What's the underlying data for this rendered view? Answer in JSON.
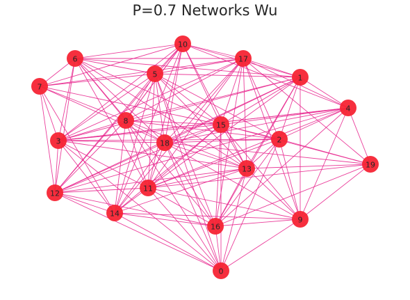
{
  "title": "P=0.7 Networks Wu",
  "colors": {
    "edge": "#e8288f",
    "node": "#f62434",
    "label": "#262626"
  },
  "chart_data": {
    "type": "network",
    "nodes": [
      {
        "id": "0",
        "label": "0"
      },
      {
        "id": "1",
        "label": "1"
      },
      {
        "id": "2",
        "label": "2"
      },
      {
        "id": "3",
        "label": "3"
      },
      {
        "id": "4",
        "label": "4"
      },
      {
        "id": "5",
        "label": "5"
      },
      {
        "id": "6",
        "label": "6"
      },
      {
        "id": "7",
        "label": "7"
      },
      {
        "id": "8",
        "label": "8"
      },
      {
        "id": "9",
        "label": "9"
      },
      {
        "id": "10",
        "label": "10"
      },
      {
        "id": "11",
        "label": "11"
      },
      {
        "id": "12",
        "label": "12"
      },
      {
        "id": "13",
        "label": "13"
      },
      {
        "id": "14",
        "label": "14"
      },
      {
        "id": "15",
        "label": "15"
      },
      {
        "id": "16",
        "label": "16"
      },
      {
        "id": "17",
        "label": "17"
      },
      {
        "id": "18",
        "label": "18"
      },
      {
        "id": "19",
        "label": "19"
      }
    ],
    "edges": [
      [
        "0",
        "11"
      ],
      [
        "0",
        "14"
      ],
      [
        "0",
        "16"
      ],
      [
        "0",
        "13"
      ],
      [
        "0",
        "9"
      ],
      [
        "0",
        "18"
      ],
      [
        "0",
        "3"
      ],
      [
        "0",
        "2"
      ],
      [
        "0",
        "15"
      ],
      [
        "0",
        "12"
      ],
      [
        "0",
        "8"
      ],
      [
        "0",
        "5"
      ],
      [
        "1",
        "17"
      ],
      [
        "1",
        "10"
      ],
      [
        "1",
        "15"
      ],
      [
        "1",
        "18"
      ],
      [
        "1",
        "2"
      ],
      [
        "1",
        "4"
      ],
      [
        "1",
        "13"
      ],
      [
        "1",
        "11"
      ],
      [
        "1",
        "16"
      ],
      [
        "1",
        "5"
      ],
      [
        "1",
        "3"
      ],
      [
        "1",
        "8"
      ],
      [
        "1",
        "6"
      ],
      [
        "1",
        "9"
      ],
      [
        "1",
        "12"
      ],
      [
        "2",
        "4"
      ],
      [
        "2",
        "19"
      ],
      [
        "2",
        "9"
      ],
      [
        "2",
        "13"
      ],
      [
        "2",
        "18"
      ],
      [
        "2",
        "15"
      ],
      [
        "2",
        "17"
      ],
      [
        "2",
        "11"
      ],
      [
        "2",
        "8"
      ],
      [
        "2",
        "3"
      ],
      [
        "2",
        "16"
      ],
      [
        "2",
        "5"
      ],
      [
        "3",
        "7"
      ],
      [
        "3",
        "6"
      ],
      [
        "3",
        "8"
      ],
      [
        "3",
        "18"
      ],
      [
        "3",
        "12"
      ],
      [
        "3",
        "11"
      ],
      [
        "3",
        "15"
      ],
      [
        "3",
        "13"
      ],
      [
        "3",
        "10"
      ],
      [
        "3",
        "5"
      ],
      [
        "3",
        "4"
      ],
      [
        "3",
        "17"
      ],
      [
        "3",
        "14"
      ],
      [
        "4",
        "17"
      ],
      [
        "4",
        "15"
      ],
      [
        "4",
        "19"
      ],
      [
        "4",
        "9"
      ],
      [
        "4",
        "18"
      ],
      [
        "4",
        "11"
      ],
      [
        "4",
        "16"
      ],
      [
        "4",
        "12"
      ],
      [
        "4",
        "10"
      ],
      [
        "4",
        "3"
      ],
      [
        "5",
        "10"
      ],
      [
        "5",
        "6"
      ],
      [
        "5",
        "7"
      ],
      [
        "5",
        "17"
      ],
      [
        "5",
        "18"
      ],
      [
        "5",
        "11"
      ],
      [
        "5",
        "14"
      ],
      [
        "5",
        "12"
      ],
      [
        "5",
        "15"
      ],
      [
        "5",
        "16"
      ],
      [
        "5",
        "13"
      ],
      [
        "5",
        "8"
      ],
      [
        "6",
        "10"
      ],
      [
        "6",
        "7"
      ],
      [
        "6",
        "8"
      ],
      [
        "6",
        "18"
      ],
      [
        "6",
        "11"
      ],
      [
        "6",
        "12"
      ],
      [
        "6",
        "13"
      ],
      [
        "6",
        "15"
      ],
      [
        "6",
        "17"
      ],
      [
        "6",
        "16"
      ],
      [
        "7",
        "8"
      ],
      [
        "7",
        "12"
      ],
      [
        "7",
        "18"
      ],
      [
        "7",
        "10"
      ],
      [
        "7",
        "15"
      ],
      [
        "7",
        "14"
      ],
      [
        "7",
        "17"
      ],
      [
        "8",
        "18"
      ],
      [
        "8",
        "11"
      ],
      [
        "8",
        "14"
      ],
      [
        "8",
        "13"
      ],
      [
        "8",
        "15"
      ],
      [
        "8",
        "17"
      ],
      [
        "8",
        "12"
      ],
      [
        "8",
        "10"
      ],
      [
        "9",
        "16"
      ],
      [
        "9",
        "14"
      ],
      [
        "9",
        "19"
      ],
      [
        "9",
        "11"
      ],
      [
        "9",
        "18"
      ],
      [
        "9",
        "13"
      ],
      [
        "9",
        "15"
      ],
      [
        "9",
        "17"
      ],
      [
        "10",
        "17"
      ],
      [
        "10",
        "18"
      ],
      [
        "10",
        "15"
      ],
      [
        "10",
        "12"
      ],
      [
        "10",
        "11"
      ],
      [
        "10",
        "14"
      ],
      [
        "10",
        "13"
      ],
      [
        "10",
        "8"
      ],
      [
        "11",
        "18"
      ],
      [
        "11",
        "12"
      ],
      [
        "11",
        "14"
      ],
      [
        "11",
        "16"
      ],
      [
        "11",
        "13"
      ],
      [
        "11",
        "15"
      ],
      [
        "11",
        "17"
      ],
      [
        "11",
        "19"
      ],
      [
        "12",
        "14"
      ],
      [
        "12",
        "18"
      ],
      [
        "12",
        "13"
      ],
      [
        "12",
        "16"
      ],
      [
        "12",
        "15"
      ],
      [
        "13",
        "16"
      ],
      [
        "13",
        "18"
      ],
      [
        "13",
        "15"
      ],
      [
        "13",
        "17"
      ],
      [
        "13",
        "19"
      ],
      [
        "13",
        "14"
      ],
      [
        "14",
        "16"
      ],
      [
        "14",
        "18"
      ],
      [
        "14",
        "17"
      ],
      [
        "14",
        "15"
      ],
      [
        "15",
        "17"
      ],
      [
        "15",
        "18"
      ],
      [
        "15",
        "16"
      ],
      [
        "15",
        "19"
      ],
      [
        "16",
        "18"
      ],
      [
        "16",
        "19"
      ],
      [
        "16",
        "17"
      ],
      [
        "17",
        "18"
      ],
      [
        "17",
        "19"
      ],
      [
        "18",
        "19"
      ]
    ]
  }
}
